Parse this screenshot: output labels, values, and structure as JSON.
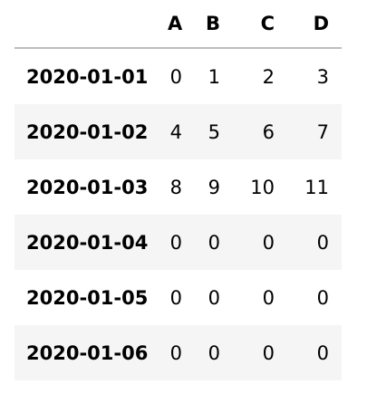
{
  "table": {
    "columns": [
      "",
      "A",
      "B",
      "C",
      "D"
    ],
    "rows": [
      {
        "index": "2020-01-01",
        "values": [
          "0",
          "1",
          "2",
          "3"
        ]
      },
      {
        "index": "2020-01-02",
        "values": [
          "4",
          "5",
          "6",
          "7"
        ]
      },
      {
        "index": "2020-01-03",
        "values": [
          "8",
          "9",
          "10",
          "11"
        ]
      },
      {
        "index": "2020-01-04",
        "values": [
          "0",
          "0",
          "0",
          "0"
        ]
      },
      {
        "index": "2020-01-05",
        "values": [
          "0",
          "0",
          "0",
          "0"
        ]
      },
      {
        "index": "2020-01-06",
        "values": [
          "0",
          "0",
          "0",
          "0"
        ]
      }
    ],
    "colors": {
      "header_rule": "#bdbdbd",
      "stripe": "#f5f5f5",
      "text": "#000000"
    }
  }
}
